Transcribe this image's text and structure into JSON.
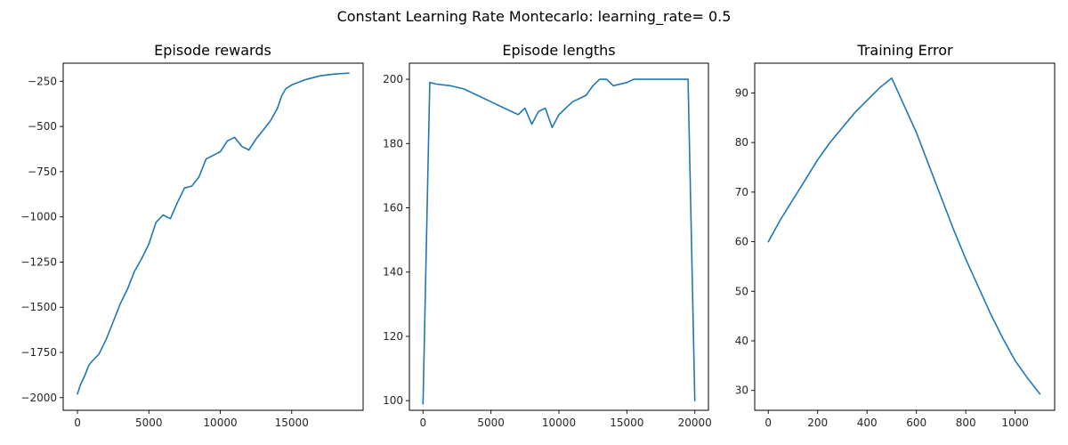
{
  "suptitle": "Constant Learning Rate Montecarlo: learning_rate= 0.5",
  "colors": {
    "series": "#1f77b4",
    "axes": "#000000",
    "text": "#262626",
    "background": "#ffffff"
  },
  "chart_data": [
    {
      "type": "line",
      "title": "Episode rewards",
      "xlabel": "",
      "ylabel": "",
      "xlim": [
        -1000,
        20000
      ],
      "ylim": [
        -2070,
        -150
      ],
      "xticks": [
        0,
        5000,
        10000,
        15000
      ],
      "yticks": [
        -2000,
        -1750,
        -1500,
        -1250,
        -1000,
        -750,
        -500,
        -250
      ],
      "grid": false,
      "series": [
        {
          "x": [
            0,
            200,
            500,
            800,
            1000,
            1500,
            2000,
            2500,
            3000,
            3500,
            4000,
            4500,
            5000,
            5500,
            6000,
            6500,
            7000,
            7500,
            8000,
            8500,
            9000,
            9500,
            10000,
            10500,
            11000,
            11500,
            12000,
            12500,
            13000,
            13500,
            14000,
            14300,
            14600,
            15000,
            16000,
            17000,
            18000,
            19000
          ],
          "y": [
            -1980,
            -1930,
            -1880,
            -1820,
            -1800,
            -1760,
            -1680,
            -1580,
            -1480,
            -1400,
            -1300,
            -1230,
            -1150,
            -1030,
            -990,
            -1010,
            -920,
            -840,
            -830,
            -780,
            -680,
            -660,
            -640,
            -580,
            -560,
            -610,
            -630,
            -570,
            -520,
            -470,
            -400,
            -330,
            -290,
            -270,
            -240,
            -220,
            -210,
            -205
          ]
        }
      ]
    },
    {
      "type": "line",
      "title": "Episode lengths",
      "xlabel": "",
      "ylabel": "",
      "xlim": [
        -1000,
        21000
      ],
      "ylim": [
        97,
        205
      ],
      "xticks": [
        0,
        5000,
        10000,
        15000,
        20000
      ],
      "yticks": [
        100,
        120,
        140,
        160,
        180,
        200
      ],
      "grid": false,
      "series": [
        {
          "x": [
            0,
            500,
            1000,
            2000,
            3000,
            4000,
            5000,
            6000,
            7000,
            7500,
            8000,
            8500,
            9000,
            9500,
            10000,
            11000,
            12000,
            12500,
            13000,
            13500,
            14000,
            15000,
            15500,
            16000,
            17000,
            18000,
            19000,
            19500,
            20000
          ],
          "y": [
            99,
            199,
            198.5,
            198,
            197,
            195,
            193,
            191,
            189,
            191,
            186,
            190,
            191,
            185,
            189,
            193,
            195,
            198,
            200,
            200,
            198,
            199,
            200,
            200,
            200,
            200,
            200,
            200,
            100
          ]
        }
      ]
    },
    {
      "type": "line",
      "title": "Training Error",
      "xlabel": "",
      "ylabel": "",
      "xlim": [
        -55,
        1160
      ],
      "ylim": [
        26,
        96
      ],
      "xticks": [
        0,
        200,
        400,
        600,
        800,
        1000
      ],
      "yticks": [
        30,
        40,
        50,
        60,
        70,
        80,
        90
      ],
      "grid": false,
      "series": [
        {
          "x": [
            0,
            50,
            100,
            150,
            200,
            250,
            300,
            350,
            400,
            450,
            500,
            550,
            600,
            650,
            700,
            750,
            800,
            850,
            900,
            950,
            1000,
            1050,
            1100
          ],
          "y": [
            60,
            64.5,
            68.5,
            72.5,
            76.5,
            80,
            83,
            86,
            88.5,
            91,
            93,
            87.5,
            82,
            75.5,
            69,
            62.5,
            56.5,
            51,
            45.5,
            40.5,
            36,
            32.5,
            29.3
          ]
        }
      ]
    }
  ]
}
